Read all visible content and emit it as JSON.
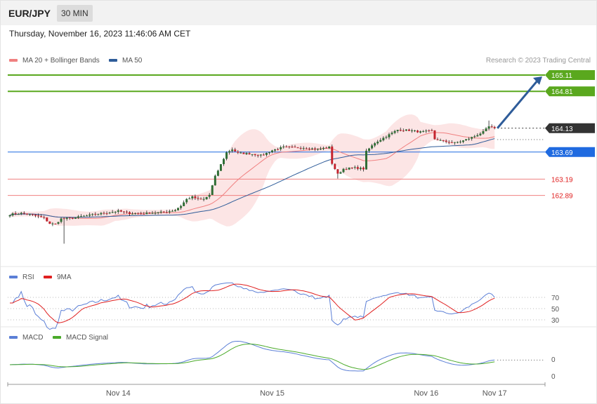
{
  "header": {
    "pair": "EUR/JPY",
    "timeframe": "30 MIN",
    "datetime": "Thursday, November 16, 2023 11:46:06 AM CET"
  },
  "price_legend": [
    {
      "label": "MA 20 + Bollinger Bands",
      "color": "#f08080"
    },
    {
      "label": "MA 50",
      "color": "#2e5c99"
    }
  ],
  "credit": "Research © 2023 Trading Central",
  "rsi_legend": [
    {
      "label": "RSI",
      "color": "#5b7fd6"
    },
    {
      "label": "9MA",
      "color": "#e02020"
    }
  ],
  "macd_legend": [
    {
      "label": "MACD",
      "color": "#5b7fd6"
    },
    {
      "label": "MACD Signal",
      "color": "#4aaa2a"
    }
  ],
  "colors": {
    "up_candle": "#2f6e35",
    "down_candle": "#c5232e",
    "target_line": "#5aa81e",
    "pivot_line": "#1f6ae0",
    "support_line": "#f08080",
    "bb_fill": "#fbdcdc",
    "arrow": "#2e5c99"
  },
  "chart_data": [
    {
      "type": "candlestick",
      "panel": "price",
      "x_labels": [
        "Nov 14",
        "Nov 15",
        "Nov 16",
        "Nov 17"
      ],
      "x_label_bars": [
        38,
        92,
        146,
        170
      ],
      "bars": 171,
      "close_start": 162.54,
      "close_path": [
        [
          0,
          162.54
        ],
        [
          4,
          162.56
        ],
        [
          8,
          162.53
        ],
        [
          12,
          162.47
        ],
        [
          14,
          162.37
        ],
        [
          16,
          162.36
        ],
        [
          18,
          162.46
        ],
        [
          22,
          162.47
        ],
        [
          26,
          162.51
        ],
        [
          30,
          162.54
        ],
        [
          34,
          162.57
        ],
        [
          38,
          162.6
        ],
        [
          42,
          162.56
        ],
        [
          46,
          162.55
        ],
        [
          50,
          162.57
        ],
        [
          54,
          162.58
        ],
        [
          58,
          162.62
        ],
        [
          60,
          162.7
        ],
        [
          62,
          162.82
        ],
        [
          64,
          162.86
        ],
        [
          66,
          162.82
        ],
        [
          68,
          162.82
        ],
        [
          70,
          162.9
        ],
        [
          72,
          163.24
        ],
        [
          74,
          163.46
        ],
        [
          76,
          163.68
        ],
        [
          78,
          163.74
        ],
        [
          80,
          163.67
        ],
        [
          84,
          163.66
        ],
        [
          88,
          163.63
        ],
        [
          90,
          163.67
        ],
        [
          92,
          163.72
        ],
        [
          96,
          163.78
        ],
        [
          100,
          163.77
        ],
        [
          104,
          163.77
        ],
        [
          108,
          163.74
        ],
        [
          112,
          163.78
        ],
        [
          113,
          163.48
        ],
        [
          115,
          163.28
        ],
        [
          117,
          163.38
        ],
        [
          121,
          163.4
        ],
        [
          124,
          163.38
        ],
        [
          125,
          163.7
        ],
        [
          128,
          163.86
        ],
        [
          132,
          163.98
        ],
        [
          136,
          164.1
        ],
        [
          140,
          164.09
        ],
        [
          144,
          164.06
        ],
        [
          148,
          164.08
        ],
        [
          149,
          163.93
        ],
        [
          152,
          163.89
        ],
        [
          156,
          163.86
        ],
        [
          159,
          163.9
        ],
        [
          162,
          163.96
        ],
        [
          166,
          164.06
        ],
        [
          168,
          164.16
        ],
        [
          170,
          164.13
        ]
      ],
      "levels": [
        {
          "value": "165.11",
          "kind": "target"
        },
        {
          "value": "164.81",
          "kind": "target"
        },
        {
          "value": "164.13",
          "kind": "last"
        },
        {
          "value": "163.69",
          "kind": "pivot"
        },
        {
          "value": "163.19",
          "kind": "support"
        },
        {
          "value": "162.89",
          "kind": "support"
        }
      ],
      "series": [
        "MA 20 + Bollinger Bands",
        "MA 50"
      ]
    },
    {
      "type": "line",
      "panel": "rsi",
      "series": [
        "RSI",
        "9MA"
      ],
      "y_ticks": [
        "70",
        "50",
        "30"
      ],
      "ylim": [
        25,
        100
      ]
    },
    {
      "type": "line",
      "panel": "macd",
      "series": [
        "MACD",
        "MACD Signal"
      ],
      "y_ticks": [
        "0",
        "0"
      ]
    }
  ]
}
